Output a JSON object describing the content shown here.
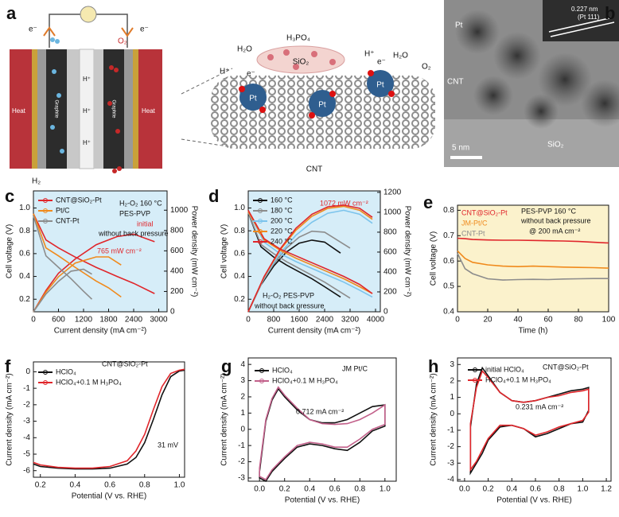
{
  "panel_a": {
    "label": "a",
    "e_left": "e⁻",
    "e_right": "e⁻",
    "o2_left": "O₂",
    "h2": "H₂",
    "heat_left": "Heat",
    "heat_right": "Heat",
    "graphite_left": "Graphite",
    "graphite_right": "Graphite",
    "h_plus_cell": [
      "H⁺",
      "H⁺",
      "H⁺"
    ],
    "h2o_left": "H₂O",
    "h_plus_left": "H⁺",
    "e_cnt_left": "e⁻",
    "h3po4": "H₃PO₄",
    "sio2": "SiO₂",
    "pt": [
      "Pt",
      "Pt",
      "Pt"
    ],
    "h_plus_right": "H⁺",
    "e_cnt_right": "e⁻",
    "h2o_right": "H₂O",
    "o2_right": "O₂",
    "cnt": "CNT"
  },
  "panel_b": {
    "label": "b",
    "spacing": "0.227 nm",
    "plane": "(Pt 111)",
    "pt": "Pt",
    "cnt": "CNT",
    "sio2": "SiO₂",
    "scale": "5 nm"
  },
  "chart_data": [
    {
      "type": "line",
      "label": "c",
      "xlabel": "Current density (mA cm⁻²)",
      "ylabel": "Cell voltage (V)",
      "y2label": "Power density (mW cm⁻²)",
      "xlim": [
        0,
        3200
      ],
      "xticks": [
        0,
        600,
        1200,
        1800,
        2400,
        3000
      ],
      "ylim": [
        0.09,
        1.15
      ],
      "yticks": [
        0.2,
        0.4,
        0.6,
        0.8,
        {
          "value": 1,
          "label": "1.0"
        }
      ],
      "y2lim": [
        0,
        1190
      ],
      "y2ticks": [
        0,
        200,
        400,
        600,
        800,
        1000
      ],
      "plot_color": "#d6edf8",
      "series": [
        {
          "name": "CNT@SiO₂-Pt",
          "color": "#e0262b",
          "x": [
            0,
            300,
            600,
            1000,
            1500,
            2000,
            2400,
            2900
          ],
          "values": [
            0.95,
            0.72,
            0.65,
            0.57,
            0.48,
            0.4,
            0.34,
            0.25
          ],
          "y2_values": [
            0,
            210,
            380,
            520,
            660,
            740,
            765,
            690
          ]
        },
        {
          "name": "Pt/C",
          "color": "#f08a1c",
          "x": [
            0,
            300,
            600,
            1000,
            1500,
            1800,
            2100
          ],
          "values": [
            0.95,
            0.65,
            0.58,
            0.48,
            0.36,
            0.3,
            0.22
          ],
          "y2_values": [
            0,
            195,
            345,
            480,
            540,
            540,
            460
          ]
        },
        {
          "name": "CNT-Pt",
          "color": "#8c8c8c",
          "x": [
            0,
            300,
            600,
            900,
            1200,
            1400
          ],
          "values": [
            0.93,
            0.58,
            0.48,
            0.38,
            0.27,
            0.2
          ],
          "y2_values": [
            0,
            175,
            300,
            400,
            420,
            370
          ]
        }
      ],
      "annotations": [
        "H₂-O₂ 160 °C",
        "PES-PVP",
        "initial",
        "without back pressure",
        "765 mW cm⁻²"
      ]
    },
    {
      "type": "line",
      "label": "d",
      "xlabel": "Current density (mA cm⁻²)",
      "ylabel": "Cell voltage (V)",
      "y2label": "Power density (mW cm⁻²)",
      "xlim": [
        0,
        4150
      ],
      "xticks": [
        0,
        800,
        1600,
        2400,
        3200,
        4000
      ],
      "ylim": [
        0.09,
        1.15
      ],
      "yticks": [
        0.2,
        0.4,
        0.6,
        0.8,
        {
          "value": 1,
          "label": "1.0"
        }
      ],
      "y2lim": [
        0,
        1215
      ],
      "y2ticks": [
        0,
        200,
        400,
        600,
        800,
        1000,
        1200
      ],
      "plot_color": "#d6edf8",
      "series": [
        {
          "name": "160 °C",
          "color": "#111111",
          "x": [
            0,
            400,
            800,
            1200,
            1600,
            2000,
            2400,
            2900
          ],
          "values": [
            0.96,
            0.66,
            0.57,
            0.5,
            0.44,
            0.38,
            0.31,
            0.22
          ],
          "y2_values": [
            0,
            270,
            460,
            600,
            690,
            720,
            700,
            590
          ]
        },
        {
          "name": "180 °C",
          "color": "#8c8c8c",
          "x": [
            0,
            400,
            800,
            1200,
            1600,
            2000,
            2400,
            2800,
            3200
          ],
          "values": [
            0.96,
            0.68,
            0.6,
            0.53,
            0.47,
            0.41,
            0.35,
            0.28,
            0.21
          ],
          "y2_values": [
            0,
            280,
            480,
            640,
            750,
            810,
            800,
            720,
            640
          ]
        },
        {
          "name": "200 °C",
          "color": "#7cc4ec",
          "x": [
            0,
            500,
            1000,
            1500,
            2000,
            2500,
            3000,
            3500,
            3900
          ],
          "values": [
            0.97,
            0.7,
            0.6,
            0.53,
            0.47,
            0.41,
            0.35,
            0.28,
            0.22
          ],
          "y2_values": [
            0,
            340,
            590,
            770,
            900,
            990,
            1020,
            980,
            890
          ]
        },
        {
          "name": "220 °C",
          "color": "#f08a1c",
          "x": [
            0,
            500,
            1000,
            1500,
            2000,
            2500,
            3000,
            3500,
            3900
          ],
          "values": [
            0.97,
            0.72,
            0.63,
            0.56,
            0.5,
            0.44,
            0.38,
            0.31,
            0.25
          ],
          "y2_values": [
            0,
            350,
            620,
            820,
            960,
            1040,
            1060,
            1020,
            930
          ]
        },
        {
          "name": "240 °C",
          "color": "#e0262b",
          "x": [
            0,
            500,
            1000,
            1500,
            2000,
            2500,
            3000,
            3500,
            3900
          ],
          "values": [
            0.98,
            0.73,
            0.64,
            0.58,
            0.52,
            0.46,
            0.4,
            0.33,
            0.25
          ],
          "y2_values": [
            0,
            355,
            630,
            840,
            980,
            1055,
            1072,
            1040,
            950
          ]
        }
      ],
      "annotations": [
        "1072 mW cm⁻²",
        "H₂-O₂  PES-PVP",
        "without back pressure"
      ]
    },
    {
      "type": "line",
      "label": "e",
      "xlabel": "Time (h)",
      "ylabel": "Cell voltage (V)",
      "xlim": [
        0,
        100
      ],
      "xticks": [
        0,
        20,
        40,
        60,
        80,
        100
      ],
      "ylim": [
        0.4,
        0.82
      ],
      "yticks": [
        0.4,
        0.5,
        0.6,
        0.7,
        0.8
      ],
      "plot_color": "#fbf2cc",
      "series": [
        {
          "name": "CNT@SiO₂-Pt",
          "color": "#e0262b",
          "x": [
            0,
            5,
            10,
            20,
            30,
            40,
            50,
            60,
            70,
            80,
            90,
            100
          ],
          "values": [
            0.69,
            0.688,
            0.685,
            0.683,
            0.682,
            0.682,
            0.681,
            0.68,
            0.679,
            0.677,
            0.674,
            0.671
          ]
        },
        {
          "name": "JM-Pt/C",
          "color": "#f08a1c",
          "x": [
            0,
            5,
            10,
            20,
            30,
            40,
            50,
            60,
            70,
            80,
            90,
            100
          ],
          "values": [
            0.64,
            0.61,
            0.595,
            0.585,
            0.58,
            0.578,
            0.58,
            0.578,
            0.576,
            0.575,
            0.574,
            0.572
          ]
        },
        {
          "name": "CNT-Pt",
          "color": "#8c8c8c",
          "x": [
            0,
            5,
            10,
            20,
            30,
            40,
            50,
            60,
            70,
            80,
            90,
            100
          ],
          "values": [
            0.63,
            0.57,
            0.55,
            0.53,
            0.525,
            0.527,
            0.528,
            0.527,
            0.529,
            0.53,
            0.531,
            0.531
          ]
        }
      ],
      "annotations": [
        "PES-PVP 160 °C",
        "without back pressure",
        "@ 200 mA cm⁻²"
      ]
    },
    {
      "type": "line",
      "label": "f",
      "xlabel": "Potential (V vs. RHE)",
      "ylabel": "Current density (mA cm⁻²)",
      "xlim": [
        0.16,
        1.03
      ],
      "xticks": [
        0.2,
        0.4,
        0.6,
        0.8,
        {
          "value": 1,
          "label": "1.0"
        }
      ],
      "ylim": [
        -6.4,
        0.6
      ],
      "yticks": [
        0,
        -1,
        -2,
        -3,
        -4,
        -5,
        -6
      ],
      "series": [
        {
          "name": "HClO₄",
          "color": "#111111",
          "x": [
            0.16,
            0.2,
            0.3,
            0.4,
            0.5,
            0.6,
            0.7,
            0.75,
            0.8,
            0.85,
            0.9,
            0.95,
            1.0,
            1.03
          ],
          "values": [
            -5.6,
            -5.75,
            -5.85,
            -5.9,
            -5.9,
            -5.85,
            -5.6,
            -5.2,
            -4.3,
            -2.9,
            -1.4,
            -0.3,
            0.05,
            0.1
          ]
        },
        {
          "name": "HClO₄+0.1 M H₃PO₄",
          "color": "#e0262b",
          "x": [
            0.16,
            0.2,
            0.3,
            0.4,
            0.5,
            0.6,
            0.7,
            0.75,
            0.8,
            0.85,
            0.9,
            0.95,
            1.0,
            1.03
          ],
          "values": [
            -5.5,
            -5.65,
            -5.8,
            -5.85,
            -5.85,
            -5.75,
            -5.4,
            -4.8,
            -3.8,
            -2.3,
            -0.9,
            -0.1,
            0.1,
            0.15
          ]
        }
      ],
      "annotations": [
        "CNT@SiO₂-Pt",
        "31 mV"
      ]
    },
    {
      "type": "cv",
      "label": "g",
      "xlabel": "Potential (V vs. RHE)",
      "ylabel": "Current density (mA cm⁻²)",
      "xlim": [
        -0.09,
        1.09
      ],
      "xticks": [
        {
          "value": 0,
          "label": "0.0"
        },
        0.2,
        0.4,
        0.6,
        0.8,
        {
          "value": 1,
          "label": "1.0"
        }
      ],
      "ylim": [
        -3.2,
        4.4
      ],
      "yticks": [
        -3,
        -2,
        -1,
        0,
        1,
        2,
        3,
        4
      ],
      "series": [
        {
          "name": "HClO₄",
          "color": "#111111",
          "x": [
            0.0,
            0.05,
            0.1,
            0.15,
            0.2,
            0.3,
            0.4,
            0.5,
            0.6,
            0.7,
            0.8,
            0.9,
            1.0,
            1.0,
            0.9,
            0.8,
            0.7,
            0.6,
            0.5,
            0.4,
            0.3,
            0.2,
            0.15,
            0.1,
            0.05,
            0.0
          ],
          "values": [
            -2.6,
            0.5,
            1.8,
            2.5,
            2.0,
            1.2,
            0.6,
            0.4,
            0.4,
            0.6,
            1.0,
            1.4,
            1.5,
            0.2,
            -0.1,
            -0.8,
            -1.3,
            -1.2,
            -1.0,
            -0.9,
            -1.1,
            -1.8,
            -2.2,
            -2.6,
            -3.2,
            -3.0
          ]
        },
        {
          "name": "HClO₄+0.1 M H₃PO₄",
          "color": "#c2608a",
          "x": [
            0.0,
            0.05,
            0.1,
            0.15,
            0.2,
            0.3,
            0.4,
            0.5,
            0.6,
            0.7,
            0.8,
            0.9,
            1.0,
            1.0,
            0.9,
            0.8,
            0.7,
            0.6,
            0.5,
            0.4,
            0.3,
            0.2,
            0.15,
            0.1,
            0.05,
            0.0
          ],
          "values": [
            -2.4,
            0.6,
            1.9,
            2.6,
            2.1,
            1.3,
            0.6,
            0.35,
            0.3,
            0.35,
            0.6,
            1.0,
            1.5,
            0.3,
            0.0,
            -0.6,
            -1.1,
            -1.1,
            -0.9,
            -0.8,
            -1.0,
            -1.7,
            -2.1,
            -2.5,
            -3.1,
            -2.9
          ]
        }
      ],
      "annotations": [
        "JM Pt/C",
        "0.712 mA cm⁻²"
      ]
    },
    {
      "type": "cv",
      "label": "h",
      "xlabel": "Potential (V vs. RHE)",
      "ylabel": "Current density (mA cm⁻²)",
      "xlim": [
        -0.06,
        1.24
      ],
      "xticks": [
        {
          "value": 0,
          "label": "0.0"
        },
        0.2,
        0.4,
        0.6,
        0.8,
        {
          "value": 1,
          "label": "1.0"
        },
        1.2
      ],
      "ylim": [
        -4.1,
        3.4
      ],
      "yticks": [
        -4,
        -3,
        -2,
        -1,
        0,
        1,
        2,
        3
      ],
      "series": [
        {
          "name": "initial HClO₄",
          "color": "#111111",
          "x": [
            0.05,
            0.1,
            0.15,
            0.2,
            0.3,
            0.4,
            0.5,
            0.6,
            0.7,
            0.8,
            0.9,
            1.0,
            1.05,
            1.05,
            1.0,
            0.9,
            0.8,
            0.7,
            0.6,
            0.5,
            0.4,
            0.3,
            0.2,
            0.15,
            0.1,
            0.05
          ],
          "values": [
            -0.8,
            1.8,
            2.8,
            2.3,
            1.3,
            0.8,
            0.7,
            0.8,
            1.0,
            1.2,
            1.4,
            1.5,
            1.6,
            0.2,
            -0.5,
            -0.6,
            -0.9,
            -1.2,
            -1.4,
            -0.9,
            -0.7,
            -0.8,
            -1.6,
            -2.4,
            -3.0,
            -3.6
          ]
        },
        {
          "name": "HClO₄+0.1 M H₃PO₄",
          "color": "#e0262b",
          "x": [
            0.05,
            0.1,
            0.15,
            0.2,
            0.3,
            0.4,
            0.5,
            0.6,
            0.7,
            0.8,
            0.9,
            1.0,
            1.05,
            1.05,
            1.0,
            0.9,
            0.8,
            0.7,
            0.6,
            0.5,
            0.4,
            0.3,
            0.2,
            0.15,
            0.1,
            0.05
          ],
          "values": [
            -0.6,
            1.6,
            2.6,
            2.2,
            1.3,
            0.8,
            0.7,
            0.8,
            1.0,
            1.1,
            1.3,
            1.4,
            1.5,
            0.1,
            -0.4,
            -0.6,
            -0.8,
            -1.1,
            -1.3,
            -0.9,
            -0.7,
            -0.7,
            -1.5,
            -2.2,
            -2.9,
            -3.4
          ]
        }
      ],
      "annotations": [
        "CNT@SiO₂-Pt",
        "0.231 mA cm⁻²"
      ]
    }
  ]
}
